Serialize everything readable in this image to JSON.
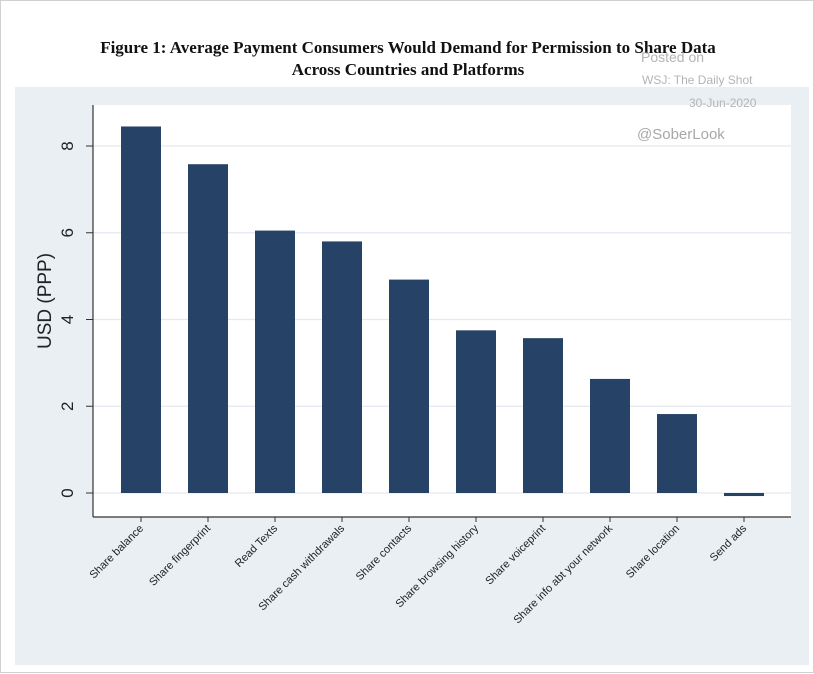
{
  "chart_data": {
    "type": "bar",
    "title": "Figure 1: Average Payment Consumers Would Demand for Permission to Share Data Across Countries and Platforms",
    "title_lines": [
      "Figure 1: Average Payment Consumers Would Demand for Permission to Share Data",
      "Across Countries and Platforms"
    ],
    "xlabel": "",
    "ylabel": "USD (PPP)",
    "ylim": [
      -0.5,
      9
    ],
    "yticks": [
      0,
      2,
      4,
      6,
      8
    ],
    "grid": true,
    "categories": [
      "Share balance",
      "Share fingerprint",
      "Read Texts",
      "Share cash withdrawals",
      "Share contacts",
      "Share browsing history",
      "Share voiceprint",
      "Share info abt your network",
      "Share location",
      "Send ads"
    ],
    "values": [
      8.45,
      7.58,
      6.05,
      5.8,
      4.92,
      3.75,
      3.57,
      2.63,
      1.82,
      -0.07
    ],
    "colors": {
      "bar": "#264266",
      "plot_bg": "#ffffff",
      "outer_bg": "#e9eff3",
      "grid": "#e3eaef"
    }
  },
  "watermark": {
    "posted_on": "Posted on",
    "source": "WSJ: The Daily Shot",
    "date": "30-Jun-2020",
    "handle": "@SoberLook"
  }
}
